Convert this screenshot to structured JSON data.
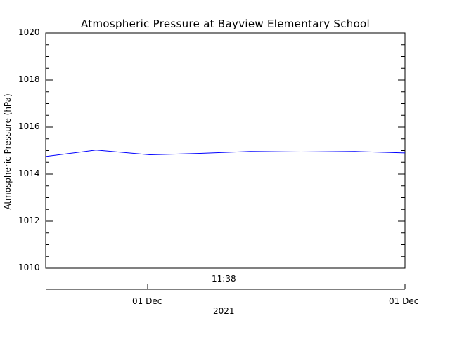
{
  "chart_data": {
    "type": "line",
    "title": "Atmospheric Pressure at Bayview Elementary School",
    "ylabel": "Atmospheric Pressure (hPa)",
    "ylim": [
      1010,
      1020
    ],
    "yticks": [
      "1010",
      "1012",
      "1014",
      "1016",
      "1018",
      "1020"
    ],
    "x_time_label": "11:38",
    "x_date_labels": [
      "01 Dec",
      "01 Dec"
    ],
    "x_year_label": "2021",
    "grid": false,
    "series": [
      {
        "color": "#0000ff",
        "x": [
          0.0,
          0.14,
          0.29,
          0.43,
          0.57,
          0.71,
          0.86,
          1.0
        ],
        "values": [
          1014.75,
          1015.02,
          1014.82,
          1014.88,
          1014.96,
          1014.94,
          1014.96,
          1014.9
        ]
      }
    ]
  }
}
